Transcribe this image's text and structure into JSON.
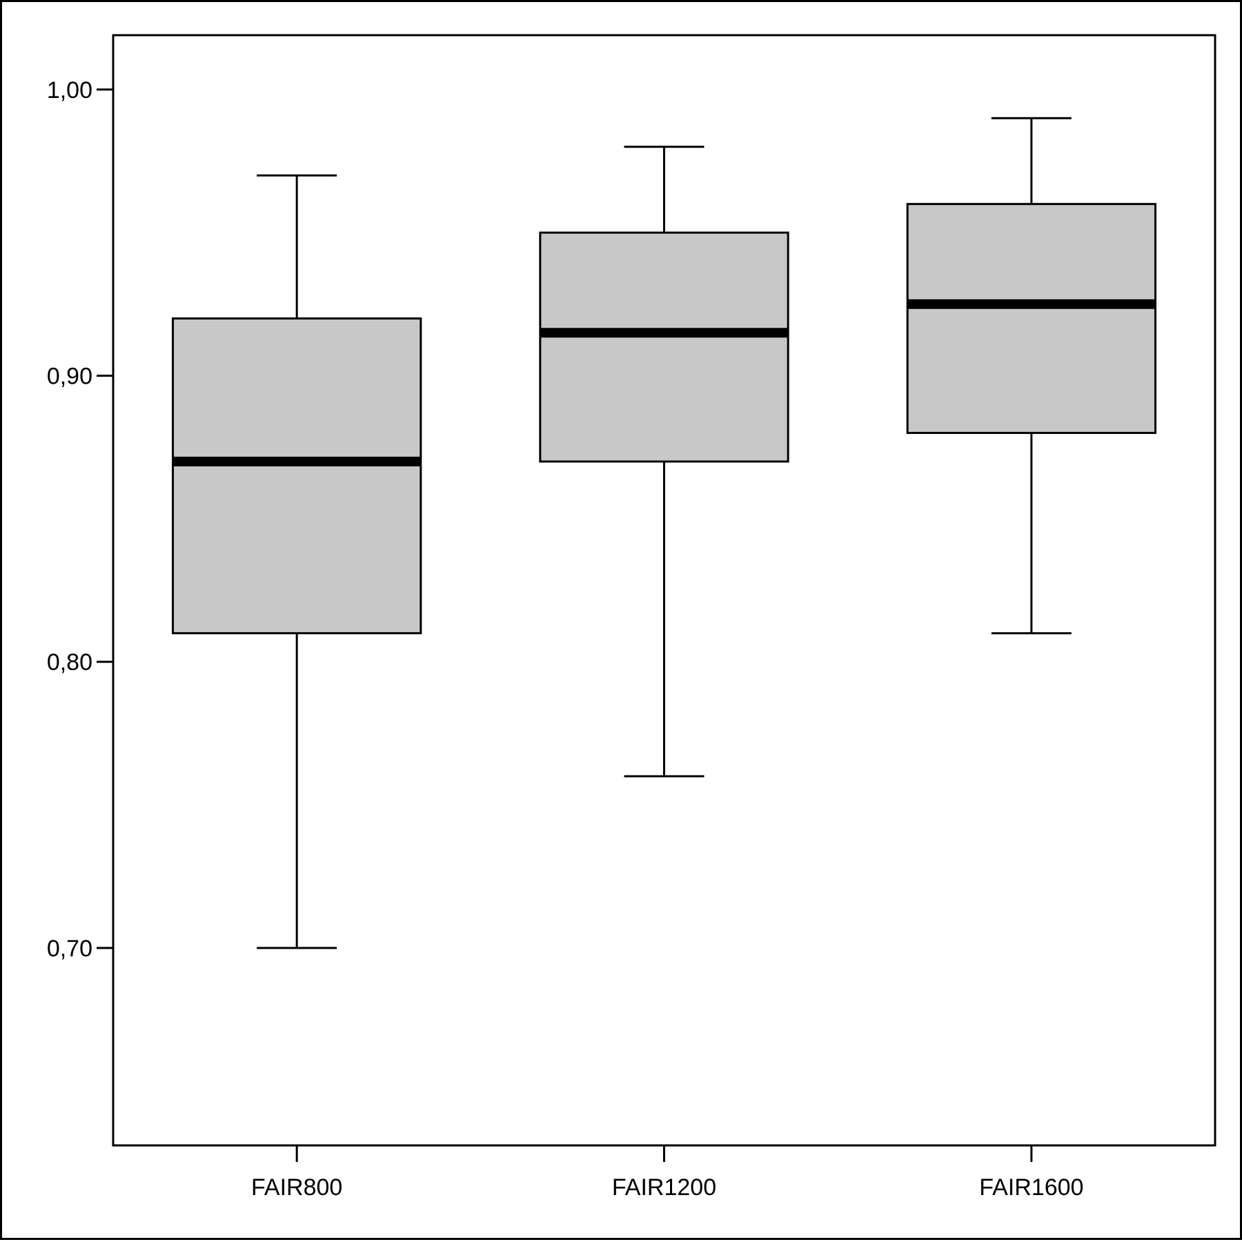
{
  "chart_data": {
    "type": "boxplot",
    "categories": [
      "FAIR800",
      "FAIR1200",
      "FAIR1600"
    ],
    "boxes": [
      {
        "category": "FAIR800",
        "whisker_low": 0.7,
        "q1": 0.81,
        "median": 0.87,
        "q3": 0.92,
        "whisker_high": 0.97
      },
      {
        "category": "FAIR1200",
        "whisker_low": 0.76,
        "q1": 0.87,
        "median": 0.915,
        "q3": 0.95,
        "whisker_high": 0.98
      },
      {
        "category": "FAIR1600",
        "whisker_low": 0.81,
        "q1": 0.88,
        "median": 0.925,
        "q3": 0.96,
        "whisker_high": 0.99
      }
    ],
    "yticks": [
      0.7,
      0.8,
      0.9,
      1.0
    ],
    "ytick_labels": [
      "0,70",
      "0,80",
      "0,90",
      "1,00"
    ],
    "ylim": [
      0.631,
      1.019
    ],
    "title": "",
    "xlabel": "",
    "ylabel": "",
    "grid": false,
    "box_fill": "#c8c8c8",
    "line_color": "#000000"
  }
}
